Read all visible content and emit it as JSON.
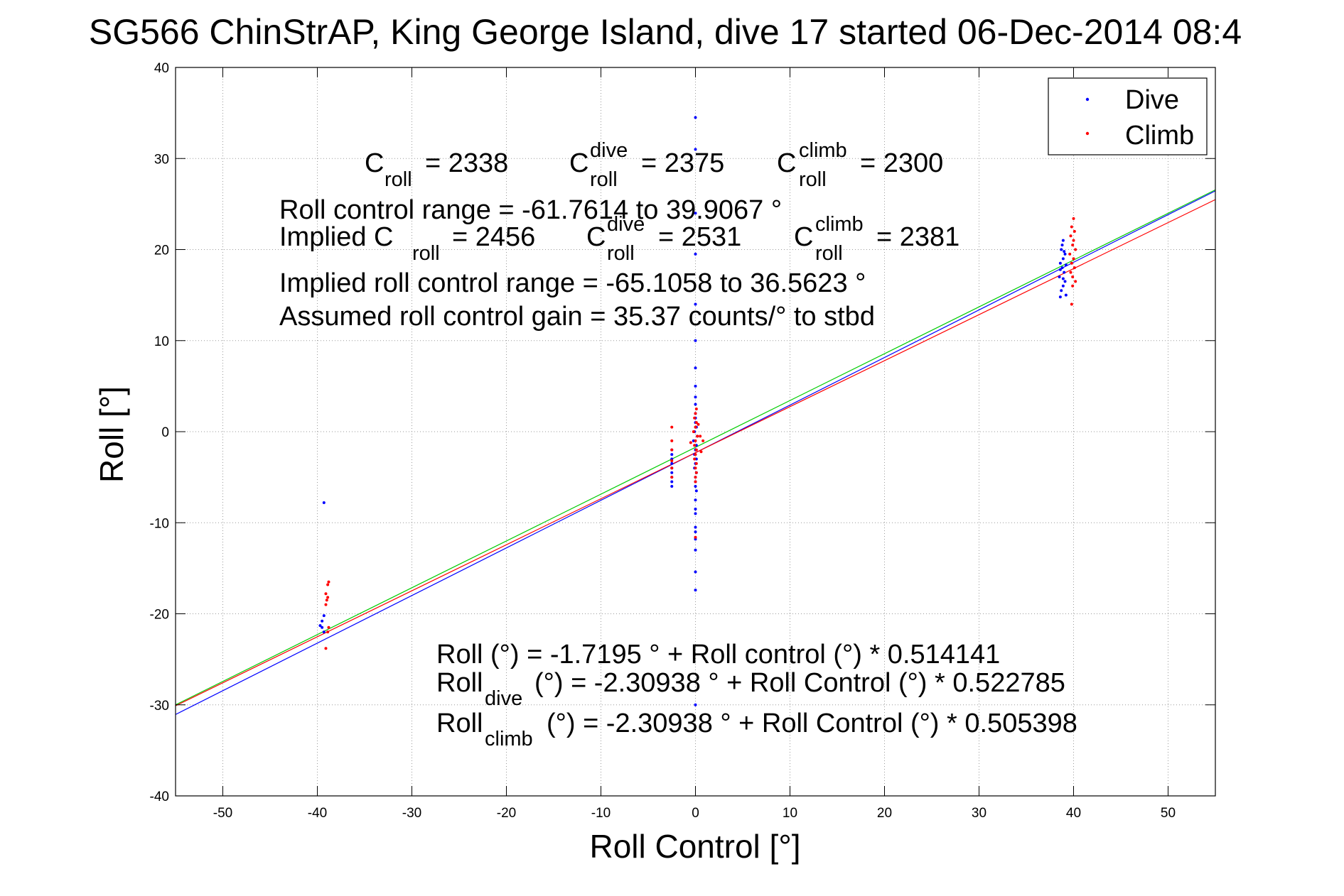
{
  "chart_data": {
    "type": "scatter",
    "title": "SG566 ChinStrAP, King George Island, dive 17 started 06-Dec-2014 08:4",
    "xlabel": "Roll Control [°]",
    "ylabel": "Roll [°]",
    "xlim": [
      -55,
      55
    ],
    "ylim": [
      -40,
      40
    ],
    "xticks": [
      -50,
      -40,
      -30,
      -20,
      -10,
      0,
      10,
      20,
      30,
      40,
      50
    ],
    "yticks": [
      -40,
      -30,
      -20,
      -10,
      0,
      10,
      20,
      30,
      40
    ],
    "grid": true,
    "legend": {
      "position": "top-right"
    },
    "series": [
      {
        "name": "Dive",
        "color": "#0000ff",
        "marker": "dot",
        "points": [
          [
            0,
            34.5
          ],
          [
            0,
            31.0
          ],
          [
            0,
            24.0
          ],
          [
            0,
            19.5
          ],
          [
            0,
            14.0
          ],
          [
            0,
            10.0
          ],
          [
            0,
            7.0
          ],
          [
            0,
            5.0
          ],
          [
            0,
            3.8
          ],
          [
            0,
            3.0
          ],
          [
            0,
            2.0
          ],
          [
            0,
            1.5
          ],
          [
            0,
            1.0
          ],
          [
            0.1,
            0.5
          ],
          [
            -0.1,
            0.0
          ],
          [
            0.2,
            -0.5
          ],
          [
            -0.2,
            -1.0
          ],
          [
            0.1,
            -1.5
          ],
          [
            0,
            -2.0
          ],
          [
            -0.1,
            -2.5
          ],
          [
            0.1,
            -3.0
          ],
          [
            0,
            -3.5
          ],
          [
            -0.1,
            -4.0
          ],
          [
            0.1,
            -4.5
          ],
          [
            0,
            -5.0
          ],
          [
            0,
            -5.5
          ],
          [
            0,
            -6.0
          ],
          [
            0.1,
            -6.5
          ],
          [
            0,
            -7.5
          ],
          [
            0,
            -8.5
          ],
          [
            0,
            -9.0
          ],
          [
            0,
            -10.5
          ],
          [
            0,
            -11.0
          ],
          [
            0,
            -11.8
          ],
          [
            0,
            -13.0
          ],
          [
            0,
            -15.4
          ],
          [
            0,
            -17.4
          ],
          [
            0,
            -30.0
          ],
          [
            -2.5,
            -2.0
          ],
          [
            -2.5,
            -2.5
          ],
          [
            -2.5,
            -3.0
          ],
          [
            -2.5,
            -3.5
          ],
          [
            -2.5,
            -4.0
          ],
          [
            -2.5,
            -4.5
          ],
          [
            -2.5,
            -5.0
          ],
          [
            -2.5,
            -5.5
          ],
          [
            -2.5,
            -6.0
          ],
          [
            -39.3,
            -7.8
          ],
          [
            -39.3,
            -20.2
          ],
          [
            -39.5,
            -20.8
          ],
          [
            -39.7,
            -21.3
          ],
          [
            -39.5,
            -21.5
          ],
          [
            -39.3,
            -22.0
          ],
          [
            38.9,
            21.0
          ],
          [
            38.7,
            20.0
          ],
          [
            39.1,
            19.5
          ],
          [
            38.9,
            19.0
          ],
          [
            38.6,
            18.5
          ],
          [
            39.2,
            18.3
          ],
          [
            38.8,
            18.0
          ],
          [
            39.0,
            17.5
          ],
          [
            38.5,
            17.0
          ],
          [
            39.1,
            16.5
          ],
          [
            38.9,
            16.0
          ],
          [
            38.7,
            15.5
          ],
          [
            39.2,
            15.0
          ],
          [
            38.8,
            20.5
          ],
          [
            39.0,
            19.8
          ],
          [
            38.6,
            17.8
          ],
          [
            38.9,
            16.8
          ],
          [
            38.6,
            14.8
          ]
        ]
      },
      {
        "name": "Climb",
        "color": "#ff0000",
        "marker": "dot",
        "points": [
          [
            0.1,
            2.5
          ],
          [
            0,
            2.0
          ],
          [
            -0.1,
            1.5
          ],
          [
            0.1,
            1.0
          ],
          [
            0,
            0.5
          ],
          [
            -0.2,
            0.0
          ],
          [
            0.2,
            -0.5
          ],
          [
            0,
            -1.0
          ],
          [
            -0.1,
            -1.5
          ],
          [
            0.1,
            -2.0
          ],
          [
            0,
            -2.5
          ],
          [
            -0.1,
            -3.0
          ],
          [
            0.1,
            -3.5
          ],
          [
            0,
            -4.0
          ],
          [
            0.1,
            -4.5
          ],
          [
            0,
            -5.0
          ],
          [
            0.5,
            -0.5
          ],
          [
            0.8,
            -1.0
          ],
          [
            -0.5,
            -1.2
          ],
          [
            0.3,
            0.8
          ],
          [
            -2.5,
            0.5
          ],
          [
            -2.5,
            -1.0
          ],
          [
            -2.5,
            -2.0
          ],
          [
            -2.5,
            -3.2
          ],
          [
            -2.5,
            -4.0
          ],
          [
            -2.5,
            -5.0
          ],
          [
            0,
            -11.6
          ],
          [
            0,
            -5.5
          ],
          [
            0.6,
            -2.2
          ],
          [
            -38.8,
            -16.5
          ],
          [
            -38.9,
            -16.8
          ],
          [
            -39.1,
            -17.8
          ],
          [
            -38.9,
            -18.2
          ],
          [
            -39.0,
            -18.5
          ],
          [
            -39.1,
            -19.0
          ],
          [
            -38.8,
            -21.5
          ],
          [
            -38.9,
            -22.0
          ],
          [
            -39.1,
            -23.8
          ],
          [
            40.0,
            23.4
          ],
          [
            39.8,
            22.5
          ],
          [
            40.1,
            22.0
          ],
          [
            39.7,
            21.5
          ],
          [
            40.0,
            21.0
          ],
          [
            39.9,
            20.5
          ],
          [
            40.2,
            20.0
          ],
          [
            39.6,
            19.5
          ],
          [
            40.0,
            19.0
          ],
          [
            39.8,
            18.5
          ],
          [
            40.1,
            18.0
          ],
          [
            39.7,
            17.5
          ],
          [
            39.9,
            17.0
          ],
          [
            40.2,
            16.5
          ],
          [
            39.9,
            16.0
          ],
          [
            39.8,
            14.0
          ]
        ]
      }
    ],
    "fit_lines": [
      {
        "name": "Roll fit",
        "color": "#00cc00",
        "intercept": -1.7195,
        "slope": 0.514141
      },
      {
        "name": "Roll dive fit",
        "color": "#0000ff",
        "intercept": -2.30938,
        "slope": 0.522785
      },
      {
        "name": "Roll climb fit",
        "color": "#ff0000",
        "intercept": -2.30938,
        "slope": 0.505398
      }
    ]
  },
  "annotations": {
    "c": "C",
    "roll_sub": "roll",
    "dive_sup": "dive",
    "climb_sup": "climb",
    "c_roll_value": "= 2338",
    "c_dive_value": "= 2375",
    "c_climb_value": "= 2300",
    "roll_range": "Roll control range = -61.7614 to 39.9067 °",
    "implied_prefix": "Implied C",
    "implied_c_roll_value": "= 2456",
    "implied_c_dive_value": "= 2531",
    "implied_c_climb_value": "= 2381",
    "implied_range": "Implied roll control range = -65.1058 to 36.5623 °",
    "assumed_gain": "Assumed roll control gain = 35.37 counts/° to stbd",
    "eq1": "Roll (°) = -1.7195 ° + Roll control (°) * 0.514141",
    "eq_roll": "Roll",
    "eq_dive_sub": "dive",
    "eq_climb_sub": "climb",
    "eq2_rest": "(°) = -2.30938 ° + Roll Control (°) * 0.522785",
    "eq3_rest": "(°) = -2.30938 ° + Roll Control (°) * 0.505398"
  }
}
